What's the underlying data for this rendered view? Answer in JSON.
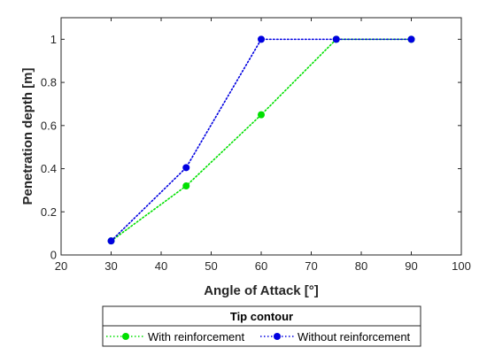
{
  "chart_data": {
    "type": "line",
    "title": "",
    "xlabel": "Angle of Attack [°]",
    "ylabel": "Penetration depth [m]",
    "xlim": [
      20,
      100
    ],
    "ylim": [
      0,
      1.1
    ],
    "xticks": [
      "20",
      "30",
      "40",
      "50",
      "60",
      "70",
      "80",
      "90",
      "100"
    ],
    "yticks": [
      "0",
      "0.2",
      "0.4",
      "0.6",
      "0.8",
      "1"
    ],
    "grid": false,
    "legend_position": "bottom-outside",
    "legend_title": "Tip contour",
    "series": [
      {
        "name": "With reinforcement",
        "color": "#00e000",
        "line_style": "dotted",
        "marker": "circle",
        "x": [
          30,
          45,
          60,
          75,
          90
        ],
        "y": [
          0.065,
          0.32,
          0.65,
          1.0,
          1.0
        ]
      },
      {
        "name": "Without reinforcement",
        "color": "#0000e0",
        "line_style": "dotted",
        "marker": "circle",
        "x": [
          30,
          45,
          60,
          75,
          90
        ],
        "y": [
          0.065,
          0.405,
          1.0,
          1.0,
          1.0
        ]
      }
    ]
  }
}
